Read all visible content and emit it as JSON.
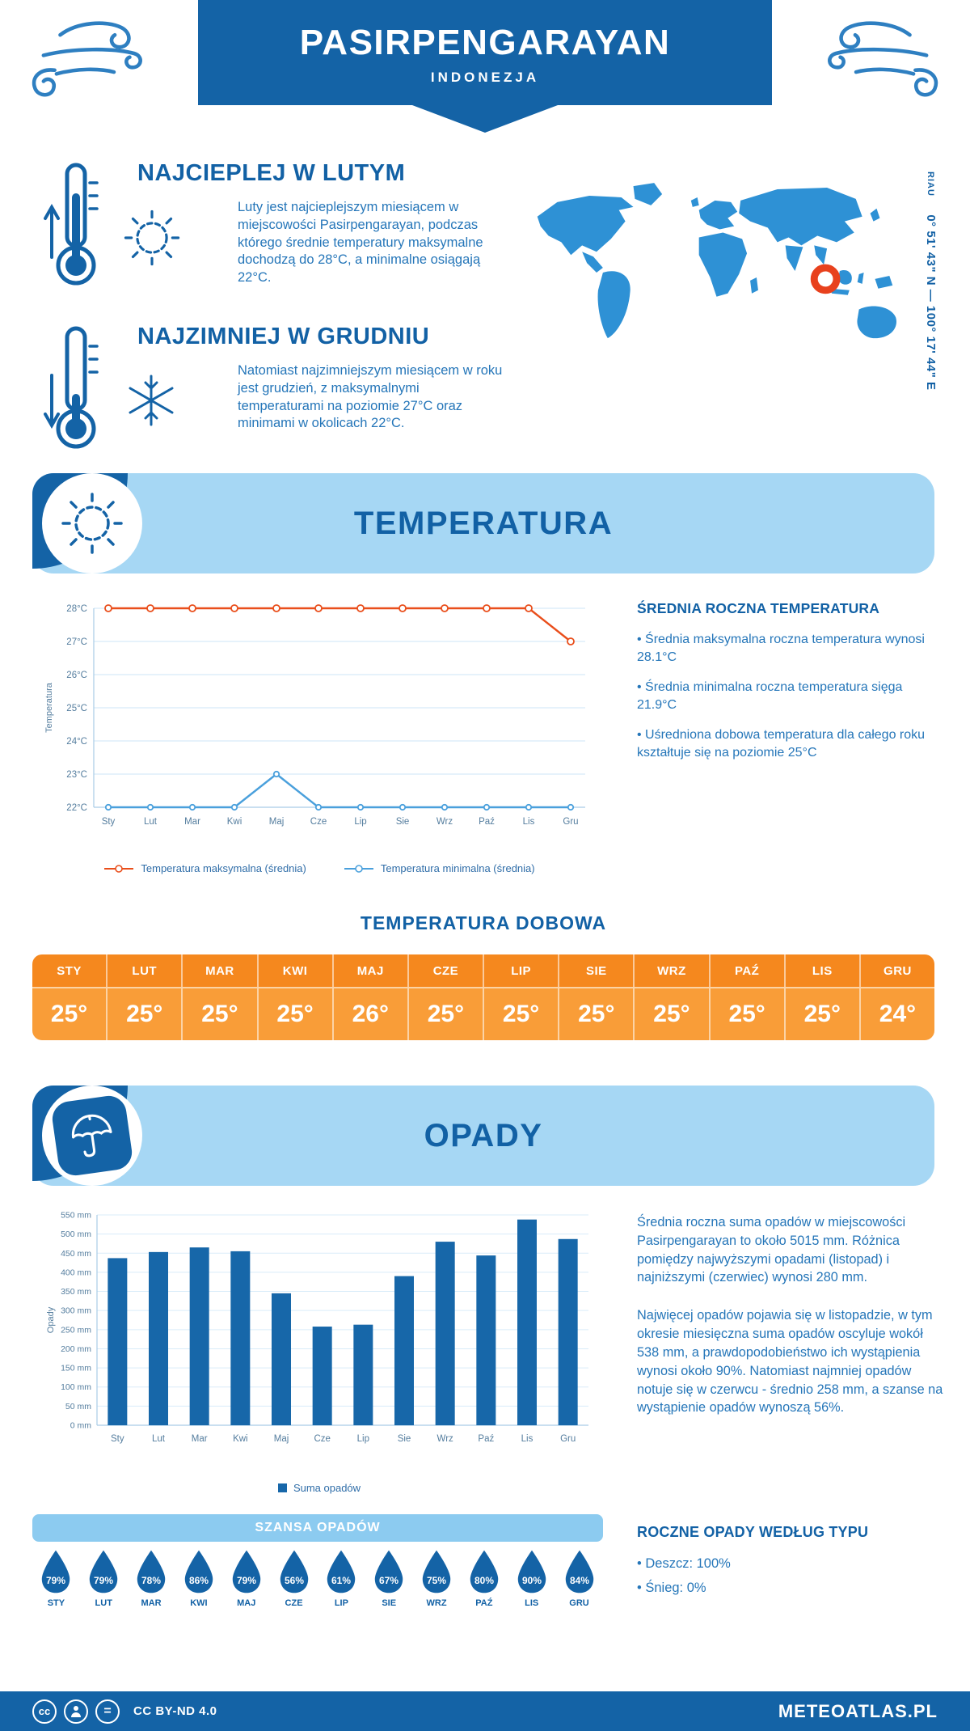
{
  "header": {
    "title": "PASIRPENGARAYAN",
    "subtitle": "INDONEZJA"
  },
  "map": {
    "region": "RIAU",
    "coordinates": "0° 51' 43\" N — 100° 17' 44\" E"
  },
  "highlights": {
    "warmest": {
      "heading": "NAJCIEPLEJ W LUTYM",
      "text": "Luty jest najcieplejszym miesiącem w miejscowości Pasirpengarayan, podczas którego średnie temperatury maksymalne dochodzą do 28°C, a minimalne osiągają 22°C."
    },
    "coldest": {
      "heading": "NAJZIMNIEJ W GRUDNIU",
      "text": "Natomiast najzimniejszym miesiącem w roku jest grudzień, z maksymalnymi temperaturami na poziomie 27°C oraz minimami w okolicach 22°C."
    }
  },
  "temperature": {
    "section_title": "TEMPERATURA",
    "summary_heading": "ŚREDNIA ROCZNA TEMPERATURA",
    "bullets": [
      "Średnia maksymalna roczna temperatura wynosi 28.1°C",
      "Średnia minimalna roczna temperatura sięga 21.9°C",
      "Uśredniona dobowa temperatura dla całego roku kształtuje się na poziomie 25°C"
    ],
    "daily_title": "TEMPERATURA DOBOWA",
    "months": [
      "STY",
      "LUT",
      "MAR",
      "KWI",
      "MAJ",
      "CZE",
      "LIP",
      "SIE",
      "WRZ",
      "PAŹ",
      "LIS",
      "GRU"
    ],
    "daily_values": [
      "25°",
      "25°",
      "25°",
      "25°",
      "26°",
      "25°",
      "25°",
      "25°",
      "25°",
      "25°",
      "25°",
      "24°"
    ]
  },
  "precipitation": {
    "section_title": "OPADY",
    "paragraphs": [
      "Średnia roczna suma opadów w miejscowości Pasirpengarayan to około 5015 mm. Różnica pomiędzy najwyższymi opadami (listopad) i najniższymi (czerwiec) wynosi 280 mm.",
      "Najwięcej opadów pojawia się w listopadzie, w tym okresie miesięczna suma opadów oscyluje wokół 538 mm, a prawdopodobieństwo ich wystąpienia wynosi około 90%. Natomiast najmniej opadów notuje się w czerwcu - średnio 258 mm, a szanse na wystąpienie opadów wynoszą 56%."
    ],
    "chance_title": "SZANSA OPADÓW",
    "months": [
      "STY",
      "LUT",
      "MAR",
      "KWI",
      "MAJ",
      "CZE",
      "LIP",
      "SIE",
      "WRZ",
      "PAŹ",
      "LIS",
      "GRU"
    ],
    "chance_values": [
      "79%",
      "79%",
      "78%",
      "86%",
      "79%",
      "56%",
      "61%",
      "67%",
      "75%",
      "80%",
      "90%",
      "84%"
    ],
    "type_heading": "ROCZNE OPADY WEDŁUG TYPU",
    "type_bullets": [
      "Deszcz: 100%",
      "Śnieg: 0%"
    ]
  },
  "footer": {
    "license": "CC BY-ND 4.0",
    "brand": "METEOATLAS.PL",
    "icon_cc": "cc",
    "icon_nd": "="
  },
  "colors": {
    "primary": "#1463a6",
    "banner_light": "#a6d7f4",
    "strip_light": "#8ccbf0",
    "orange_header": "#f5881e",
    "orange_values": "#f99d38",
    "max_line": "#e94e1b",
    "min_line": "#4aa0dc",
    "map_blue": "#2e91d5",
    "marker_red": "#e8411d"
  },
  "chart_data": [
    {
      "type": "line",
      "title": "TEMPERATURA",
      "categories": [
        "Sty",
        "Lut",
        "Mar",
        "Kwi",
        "Maj",
        "Cze",
        "Lip",
        "Sie",
        "Wrz",
        "Paź",
        "Lis",
        "Gru"
      ],
      "series": [
        {
          "name": "Temperatura maksymalna (średnia)",
          "color": "#e94e1b",
          "values": [
            28,
            28,
            28,
            28,
            28,
            28,
            28,
            28,
            28,
            28,
            28,
            27
          ]
        },
        {
          "name": "Temperatura minimalna (średnia)",
          "color": "#4aa0dc",
          "values": [
            22,
            22,
            22,
            22,
            23,
            22,
            22,
            22,
            22,
            22,
            22,
            22
          ]
        }
      ],
      "xlabel": "",
      "ylabel": "Temperatura",
      "ylim": [
        22,
        28
      ],
      "ytick_suffix": "°C",
      "grid": true,
      "legend_position": "bottom"
    },
    {
      "type": "bar",
      "title": "OPADY",
      "categories": [
        "Sty",
        "Lut",
        "Mar",
        "Kwi",
        "Maj",
        "Cze",
        "Lip",
        "Sie",
        "Wrz",
        "Paź",
        "Lis",
        "Gru"
      ],
      "series": [
        {
          "name": "Suma opadów",
          "color": "#1767a9",
          "values": [
            437,
            453,
            465,
            455,
            345,
            258,
            263,
            390,
            480,
            444,
            538,
            487
          ]
        }
      ],
      "xlabel": "",
      "ylabel": "Opady",
      "ylim": [
        0,
        550
      ],
      "ytick_step": 50,
      "ytick_suffix": " mm",
      "grid": true,
      "legend_position": "bottom"
    }
  ]
}
